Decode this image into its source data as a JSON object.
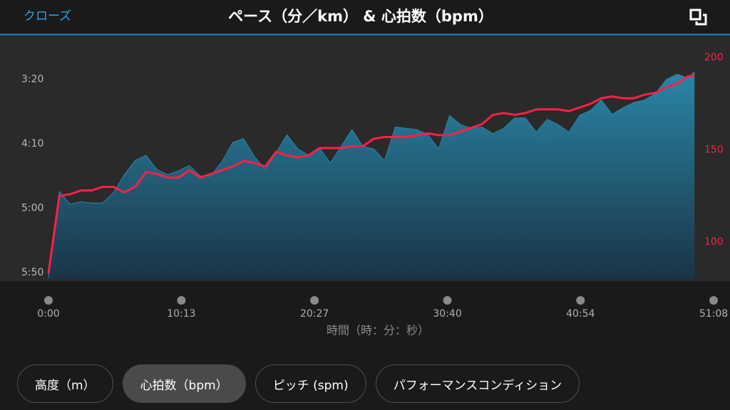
{
  "header": {
    "close": "クローズ",
    "title": "ペース（分／km） & 心拍数（bpm）"
  },
  "chart_data": {
    "type": "line",
    "x": [
      0,
      50,
      100,
      150,
      200,
      250,
      300,
      350,
      400,
      450,
      500,
      550,
      600,
      650,
      700,
      750,
      800,
      850,
      900,
      950,
      1000,
      1050,
      1100,
      1150,
      1200,
      1250,
      1300,
      1350,
      1400,
      1450,
      1500,
      1550,
      1600,
      1650,
      1700,
      1750,
      1800,
      1850,
      1900,
      1950,
      2000,
      2050,
      2100,
      2150,
      2200,
      2250,
      2300,
      2350,
      2400,
      2450,
      2500,
      2550,
      2600,
      2650,
      2700,
      2750,
      2800,
      2850,
      2900,
      2950,
      2980
    ],
    "xlim": [
      0,
      3068
    ],
    "xticks": [
      {
        "value": 0,
        "label": "0:00"
      },
      {
        "value": 613,
        "label": "10:13"
      },
      {
        "value": 1227,
        "label": "20:27"
      },
      {
        "value": 1840,
        "label": "30:40"
      },
      {
        "value": 2454,
        "label": "40:54"
      },
      {
        "value": 3068,
        "label": "51:08"
      }
    ],
    "xlabel": "時間（時：分：秒）",
    "ylim": [
      355,
      166
    ],
    "yticks": [
      {
        "value": 200,
        "label": "3:20"
      },
      {
        "value": 250,
        "label": "4:10"
      },
      {
        "value": 300,
        "label": "5:00"
      },
      {
        "value": 350,
        "label": "5:50"
      }
    ],
    "y2lim": [
      80,
      212
    ],
    "y2ticks": [
      100,
      150,
      200
    ],
    "y2color": "#ff1f4b",
    "series": [
      {
        "type": "area",
        "color": "#2a86a6",
        "values": [
          354,
          287,
          297,
          295,
          296,
          296,
          288,
          274,
          263,
          259,
          270,
          274,
          271,
          267,
          275,
          275,
          264,
          249,
          246,
          260,
          270,
          257,
          243,
          254,
          259,
          253,
          265,
          252,
          239,
          252,
          254,
          263,
          237,
          238,
          239,
          243,
          254,
          228,
          235,
          238,
          237,
          242,
          238,
          230,
          230,
          241,
          231,
          235,
          241,
          228,
          224,
          216,
          227,
          222,
          218,
          216,
          211,
          200,
          196,
          199,
          194
        ]
      },
      {
        "type": "line",
        "color": "#ff1f4b",
        "axis": "y2",
        "values": [
          83,
          125,
          126,
          128,
          128,
          130,
          130,
          127,
          130,
          138,
          137,
          135,
          135,
          139,
          135,
          137,
          139,
          141,
          144,
          143,
          141,
          149,
          147,
          146,
          147,
          151,
          151,
          151,
          152,
          152,
          156,
          157,
          157,
          157,
          158,
          159,
          158,
          158,
          160,
          162,
          164,
          169,
          170,
          169,
          170,
          172,
          172,
          172,
          171,
          173,
          175,
          178,
          179,
          178,
          178,
          180,
          181,
          184,
          186,
          190,
          190
        ]
      }
    ]
  },
  "tabs": [
    {
      "label": "高度（m）",
      "selected": false
    },
    {
      "label": "心拍数（bpm）",
      "selected": true
    },
    {
      "label": "ピッチ (spm)",
      "selected": false
    },
    {
      "label": "パフォーマンスコンディション",
      "selected": false
    }
  ]
}
